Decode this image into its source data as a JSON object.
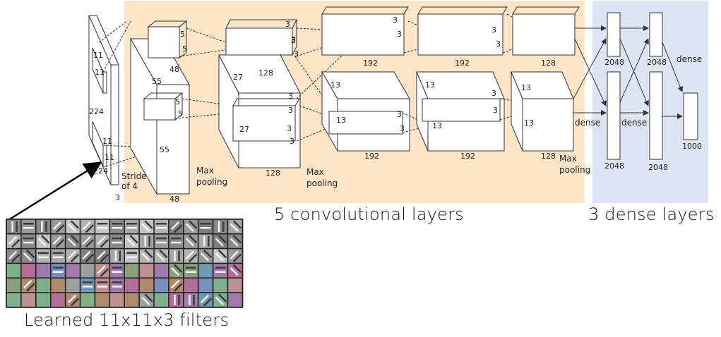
{
  "colors": {
    "conv_region": "#fde5c8",
    "dense_region": "#dfe4f4",
    "line": "#333333",
    "arrow": "#000000",
    "filter_border": "#222222"
  },
  "captions": {
    "conv": "5 convolutional layers",
    "dense": "3 dense layers",
    "filters": "Learned 11x11x3 filters"
  },
  "labels": {
    "input_224_left": "224",
    "input_224_bottom": "224",
    "input_3": "3",
    "input_11a": "11",
    "input_11b": "11",
    "input_11c": "11",
    "input_11d": "11",
    "stride": "Stride",
    "stride2": "of 4",
    "c1_5a": "5",
    "c1_5b": "5",
    "c1_5c": "5",
    "c1_5d": "5",
    "c1_48a": "48",
    "c1_48b": "48",
    "c1_55a": "55",
    "c1_55b": "55",
    "c2_27a": "27",
    "c2_27b": "27",
    "c2_128a": "128",
    "c2_128b": "128",
    "c2_3a": "3",
    "c2_3b": "3",
    "c2_3c": "3",
    "c2_3d": "3",
    "c2_3e": "3",
    "c2_3f": "3",
    "c2_3g": "3",
    "c2_3h": "3",
    "maxpool1a": "Max",
    "maxpool1b": "pooling",
    "maxpool2a": "Max",
    "maxpool2b": "pooling",
    "maxpool3a": "Max",
    "maxpool3b": "pooling",
    "c3_13a": "13",
    "c3_13b": "13",
    "c3_192a": "192",
    "c3_192b": "192",
    "c3_3a": "3",
    "c3_3b": "3",
    "c3_3c": "3",
    "c3_3d": "3",
    "c4_13a": "13",
    "c4_13b": "13",
    "c4_192a": "192",
    "c4_192b": "192",
    "c4_3a": "3",
    "c4_3b": "3",
    "c4_3c": "3",
    "c4_3d": "3",
    "c5_13a": "13",
    "c5_13b": "13",
    "c5_128a": "128",
    "c5_128b": "128",
    "d1_2048a": "2048",
    "d1_2048b": "2048",
    "d2_2048a": "2048",
    "d2_2048b": "2048",
    "dense_a": "dense",
    "dense_b": "dense",
    "dense_c": "dense",
    "out_1000": "1000"
  }
}
